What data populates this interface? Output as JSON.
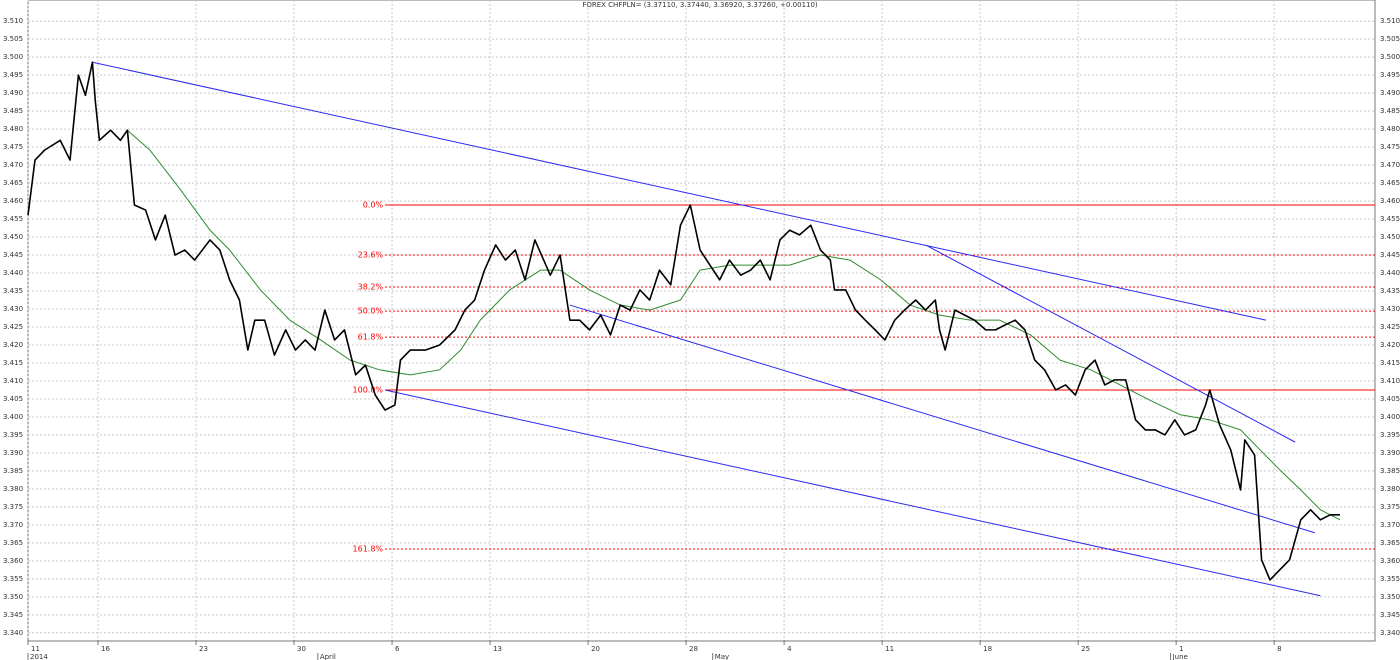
{
  "chart_data": {
    "type": "line",
    "title": "FOREX CHFPLN= (3.37110, 3.37440, 3.36920, 3.37260, +0.00110)",
    "xlim": [
      0,
      96.2
    ],
    "ylim": [
      3.338,
      3.5145
    ],
    "grid": true,
    "xticks": [
      {
        "value": 0,
        "label": "11"
      },
      {
        "value": 5,
        "label": "16"
      },
      {
        "value": 12,
        "label": "23"
      },
      {
        "value": 19,
        "label": "30"
      },
      {
        "value": 26,
        "label": "6"
      },
      {
        "value": 33,
        "label": "13"
      },
      {
        "value": 40,
        "label": "20"
      },
      {
        "value": 47,
        "label": "28"
      },
      {
        "value": 54,
        "label": "4"
      },
      {
        "value": 61,
        "label": "11"
      },
      {
        "value": 68,
        "label": "18"
      },
      {
        "value": 75,
        "label": "25"
      },
      {
        "value": 82,
        "label": "1"
      },
      {
        "value": 89,
        "label": "8"
      }
    ],
    "month_labels": [
      {
        "value": 0,
        "label": "2014"
      },
      {
        "value": 20.7,
        "label": "April"
      },
      {
        "value": 48.9,
        "label": "May"
      },
      {
        "value": 81.6,
        "label": "June"
      }
    ],
    "yticks": [
      {
        "value": 3.34,
        "label": "3.340"
      },
      {
        "value": 3.345,
        "label": "3.345"
      },
      {
        "value": 3.35,
        "label": "3.350"
      },
      {
        "value": 3.355,
        "label": "3.355"
      },
      {
        "value": 3.36,
        "label": "3.360"
      },
      {
        "value": 3.365,
        "label": "3.365"
      },
      {
        "value": 3.37,
        "label": "3.370"
      },
      {
        "value": 3.375,
        "label": "3.375"
      },
      {
        "value": 3.38,
        "label": "3.380"
      },
      {
        "value": 3.385,
        "label": "3.385"
      },
      {
        "value": 3.39,
        "label": "3.390"
      },
      {
        "value": 3.395,
        "label": "3.395"
      },
      {
        "value": 3.4,
        "label": "3.400"
      },
      {
        "value": 3.405,
        "label": "3.405"
      },
      {
        "value": 3.41,
        "label": "3.410"
      },
      {
        "value": 3.415,
        "label": "3.415"
      },
      {
        "value": 3.42,
        "label": "3.420"
      },
      {
        "value": 3.425,
        "label": "3.425"
      },
      {
        "value": 3.43,
        "label": "3.430"
      },
      {
        "value": 3.435,
        "label": "3.435"
      },
      {
        "value": 3.44,
        "label": "3.440"
      },
      {
        "value": 3.445,
        "label": "3.445"
      },
      {
        "value": 3.45,
        "label": "3.450"
      },
      {
        "value": 3.455,
        "label": "3.455"
      },
      {
        "value": 3.46,
        "label": "3.460"
      },
      {
        "value": 3.465,
        "label": "3.465"
      },
      {
        "value": 3.47,
        "label": "3.470"
      },
      {
        "value": 3.475,
        "label": "3.475"
      },
      {
        "value": 3.48,
        "label": "3.480"
      },
      {
        "value": 3.485,
        "label": "3.485"
      },
      {
        "value": 3.49,
        "label": "3.490"
      },
      {
        "value": 3.495,
        "label": "3.495"
      },
      {
        "value": 3.5,
        "label": "3.500"
      },
      {
        "value": 3.505,
        "label": "3.505"
      },
      {
        "value": 3.51,
        "label": "3.510"
      }
    ],
    "series": [
      {
        "color": "#000000",
        "width": 1.6,
        "x": [
          0,
          0.5,
          1.2,
          2.3,
          3,
          3.6,
          4.1,
          4.6,
          4.8,
          5.1,
          5.9,
          6.6,
          7.1,
          7.6,
          8.4,
          9.1,
          9.8,
          10.5,
          11.2,
          11.9,
          13,
          13.7,
          14.4,
          15.1,
          15.7,
          16.2,
          16.9,
          17.6,
          18.4,
          19.1,
          19.8,
          20.5,
          21.2,
          21.9,
          22.6,
          23.4,
          24.1,
          24.8,
          25.5,
          26.2,
          26.6,
          27.3,
          28.4,
          29.4,
          30.5,
          31.2,
          31.9,
          32.6,
          33.4,
          34.1,
          34.8,
          35.5,
          36.2,
          37.3,
          38,
          38.7,
          39.4,
          40.1,
          40.9,
          41.6,
          42.3,
          43,
          43.7,
          44.4,
          45.1,
          45.9,
          46.6,
          47.3,
          48,
          48.7,
          49.4,
          50.1,
          50.9,
          51.6,
          52.3,
          53,
          53.7,
          54.4,
          55.1,
          55.9,
          56.6,
          57.3,
          57.6,
          58.4,
          59.1,
          59.8,
          60.5,
          61.2,
          61.9,
          62.6,
          63.4,
          64.1,
          64.8,
          65.1,
          65.5,
          66.2,
          66.9,
          67.6,
          68.4,
          69.1,
          69.8,
          70.5,
          71.2,
          71.9,
          72.6,
          73.4,
          74.1,
          74.8,
          75.5,
          76.2,
          76.9,
          77.6,
          78.4,
          79.1,
          79.8,
          80.5,
          81.2,
          81.9,
          82.6,
          83.4,
          84.1,
          84.4,
          85.1,
          85.9,
          86.6,
          86.9,
          87.6,
          88.1,
          88.7,
          89.4,
          90.1,
          90.9,
          91.6,
          92.3,
          93,
          93.7
        ],
        "values": [
          3.4561,
          3.4714,
          3.4742,
          3.4769,
          3.4714,
          3.495,
          3.4894,
          3.4986,
          3.4881,
          3.4769,
          3.4797,
          3.4769,
          3.4797,
          3.4589,
          3.4575,
          3.4492,
          3.4561,
          3.445,
          3.4464,
          3.4436,
          3.4492,
          3.4464,
          3.4381,
          3.4325,
          3.4186,
          3.4269,
          3.4269,
          3.4172,
          3.4242,
          3.4186,
          3.4214,
          3.4186,
          3.4297,
          3.4214,
          3.4242,
          3.4117,
          3.4144,
          3.4061,
          3.4019,
          3.4033,
          3.4158,
          3.4186,
          3.4186,
          3.42,
          3.4242,
          3.4297,
          3.4325,
          3.4408,
          3.4478,
          3.4436,
          3.4464,
          3.4381,
          3.4492,
          3.4394,
          3.445,
          3.4269,
          3.4269,
          3.4242,
          3.4283,
          3.4228,
          3.4311,
          3.4297,
          3.4353,
          3.4325,
          3.4408,
          3.4367,
          3.4533,
          3.4589,
          3.4464,
          3.4422,
          3.4381,
          3.4436,
          3.4394,
          3.4408,
          3.4436,
          3.4381,
          3.4492,
          3.4519,
          3.4506,
          3.4533,
          3.4464,
          3.4436,
          3.4353,
          3.4353,
          3.4297,
          3.4269,
          3.4242,
          3.4214,
          3.4269,
          3.4297,
          3.4325,
          3.4297,
          3.4325,
          3.4242,
          3.4186,
          3.4297,
          3.4283,
          3.4269,
          3.4242,
          3.4242,
          3.4256,
          3.4269,
          3.4242,
          3.4158,
          3.4131,
          3.4075,
          3.4089,
          3.4061,
          3.4131,
          3.4158,
          3.4089,
          3.4103,
          3.4103,
          3.3992,
          3.3964,
          3.3964,
          3.395,
          3.3992,
          3.395,
          3.3964,
          3.4033,
          3.4075,
          3.3978,
          3.3908,
          3.3797,
          3.3936,
          3.3894,
          3.3603,
          3.3547,
          3.3575,
          3.3603,
          3.3714,
          3.3742,
          3.3714,
          3.3728,
          3.3728
        ]
      },
      {
        "color": "#2e8b2e",
        "width": 1,
        "x": [
          7.1,
          8.7,
          10.9,
          13,
          14.4,
          16.6,
          18.7,
          20.9,
          23,
          25.1,
          27.3,
          29.4,
          30.9,
          32.3,
          34.4,
          36.6,
          38,
          40.1,
          42.3,
          44.4,
          46.6,
          48,
          50.1,
          52.3,
          54.4,
          56.6,
          58.7,
          60.9,
          63,
          65.1,
          67.3,
          69.4,
          71.6,
          73.7,
          75.9,
          78,
          80.1,
          82.3,
          84.4,
          86.6,
          88,
          89.4,
          90.9,
          92.3,
          93.7
        ],
        "values": [
          3.4797,
          3.4742,
          3.4631,
          3.4519,
          3.4464,
          3.4353,
          3.4269,
          3.4214,
          3.4158,
          3.4131,
          3.4117,
          3.4131,
          3.4186,
          3.4269,
          3.4353,
          3.4408,
          3.4408,
          3.4353,
          3.4311,
          3.4297,
          3.4325,
          3.4408,
          3.4422,
          3.4422,
          3.4422,
          3.445,
          3.4436,
          3.4381,
          3.4311,
          3.4283,
          3.4269,
          3.4269,
          3.4228,
          3.4158,
          3.4131,
          3.4089,
          3.4047,
          3.4006,
          3.3992,
          3.3964,
          3.3908,
          3.3853,
          3.3797,
          3.3742,
          3.3714
        ]
      }
    ],
    "trendlines": {
      "color": "#2a2af0",
      "lines": [
        {
          "x": [
            4.6,
            88.4
          ],
          "y": [
            3.4986,
            3.4269
          ]
        },
        {
          "x": [
            25.5,
            92.3
          ],
          "y": [
            3.4075,
            3.3503
          ]
        },
        {
          "x": [
            38.7,
            91.9
          ],
          "y": [
            3.4311,
            3.3678
          ]
        },
        {
          "x": [
            64.1,
            90.5
          ],
          "y": [
            3.4478,
            3.393
          ]
        }
      ]
    },
    "fibonacci": {
      "color": "#ff0000",
      "x_start": 25.5,
      "levels": [
        {
          "label": "0.0%",
          "value": 3.4589,
          "style": "solid"
        },
        {
          "label": "23.6%",
          "value": 3.445,
          "style": "dashed"
        },
        {
          "label": "38.2%",
          "value": 3.4361,
          "style": "dashed"
        },
        {
          "label": "50.0%",
          "value": 3.4294,
          "style": "dashed"
        },
        {
          "label": "61.8%",
          "value": 3.4222,
          "style": "dashed"
        },
        {
          "label": "100.0%",
          "value": 3.4075,
          "style": "solid"
        },
        {
          "label": "161.8%",
          "value": 3.3633,
          "style": "dashed"
        }
      ]
    }
  }
}
